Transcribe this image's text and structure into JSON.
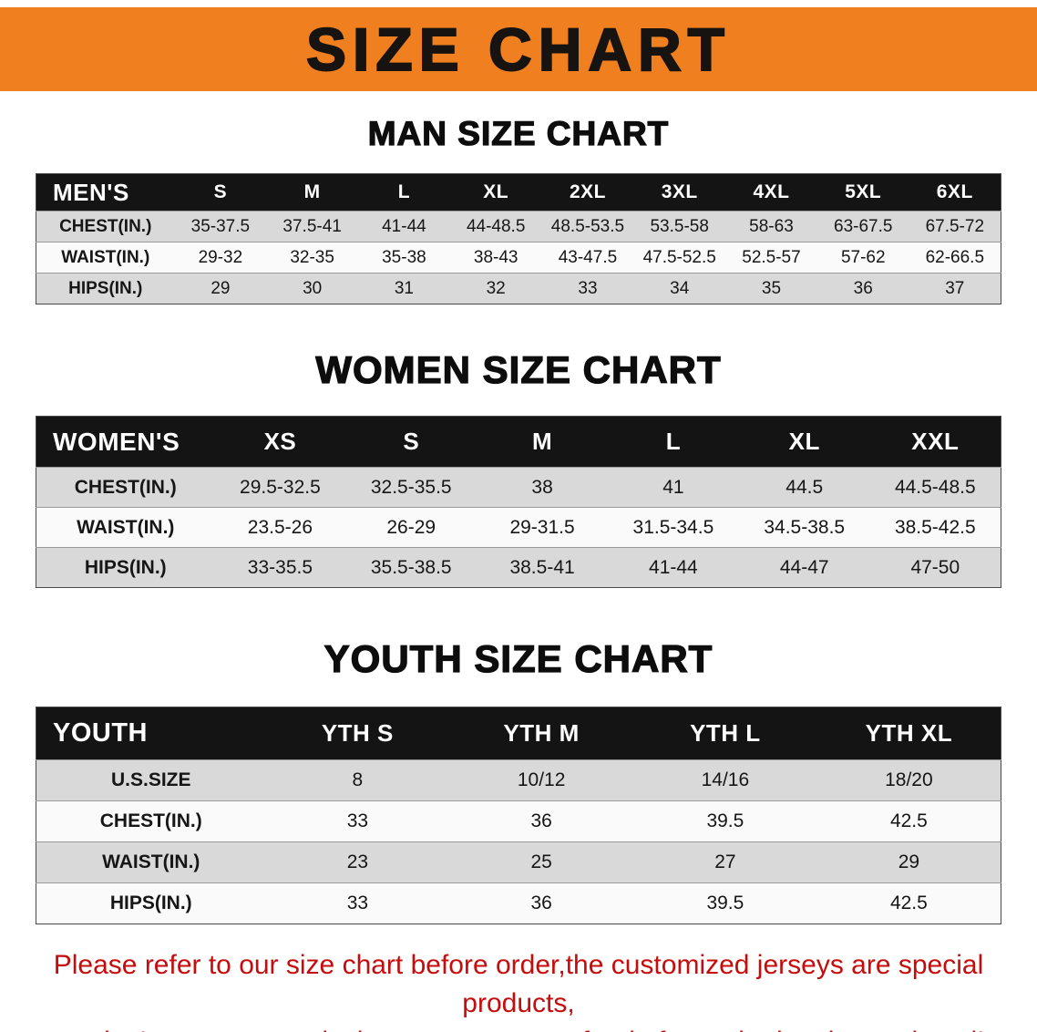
{
  "banner": {
    "title": "SIZE CHART",
    "bg_color": "#ef7f1f",
    "text_color": "#161310"
  },
  "sections": [
    {
      "id": "men",
      "heading": "MAN SIZE CHART",
      "table": {
        "label": "MEN'S",
        "columns": [
          "S",
          "M",
          "L",
          "XL",
          "2XL",
          "3XL",
          "4XL",
          "5XL",
          "6XL"
        ],
        "rows": [
          {
            "label": "CHEST(IN.)",
            "values": [
              "35-37.5",
              "37.5-41",
              "41-44",
              "44-48.5",
              "48.5-53.5",
              "53.5-58",
              "58-63",
              "63-67.5",
              "67.5-72"
            ]
          },
          {
            "label": "WAIST(IN.)",
            "values": [
              "29-32",
              "32-35",
              "35-38",
              "38-43",
              "43-47.5",
              "47.5-52.5",
              "52.5-57",
              "57-62",
              "62-66.5"
            ]
          },
          {
            "label": "HIPS(IN.)",
            "values": [
              "29",
              "30",
              "31",
              "32",
              "33",
              "34",
              "35",
              "36",
              "37"
            ]
          }
        ]
      }
    },
    {
      "id": "women",
      "heading": "WOMEN SIZE CHART",
      "table": {
        "label": "WOMEN'S",
        "columns": [
          "XS",
          "S",
          "M",
          "L",
          "XL",
          "XXL"
        ],
        "rows": [
          {
            "label": "CHEST(IN.)",
            "values": [
              "29.5-32.5",
              "32.5-35.5",
              "38",
              "41",
              "44.5",
              "44.5-48.5"
            ]
          },
          {
            "label": "WAIST(IN.)",
            "values": [
              "23.5-26",
              "26-29",
              "29-31.5",
              "31.5-34.5",
              "34.5-38.5",
              "38.5-42.5"
            ]
          },
          {
            "label": "HIPS(IN.)",
            "values": [
              "33-35.5",
              "35.5-38.5",
              "38.5-41",
              "41-44",
              "44-47",
              "47-50"
            ]
          }
        ]
      }
    },
    {
      "id": "youth",
      "heading": "YOUTH SIZE CHART",
      "table": {
        "label": "YOUTH",
        "columns": [
          "YTH S",
          "YTH M",
          "YTH L",
          "YTH XL"
        ],
        "rows": [
          {
            "label": "U.S.SIZE",
            "values": [
              "8",
              "10/12",
              "14/16",
              "18/20"
            ]
          },
          {
            "label": "CHEST(IN.)",
            "values": [
              "33",
              "36",
              "39.5",
              "42.5"
            ]
          },
          {
            "label": "WAIST(IN.)",
            "values": [
              "23",
              "25",
              "27",
              "29"
            ]
          },
          {
            "label": "HIPS(IN.)",
            "values": [
              "33",
              "36",
              "39.5",
              "42.5"
            ]
          }
        ]
      }
    }
  ],
  "footer": {
    "line1": "Please refer to our size chart before order,the customized jerseys are special products,",
    "line2": "we don't accept cancel, change, teturn or refund after order has been placed!",
    "text_color": "#c60c0c"
  }
}
